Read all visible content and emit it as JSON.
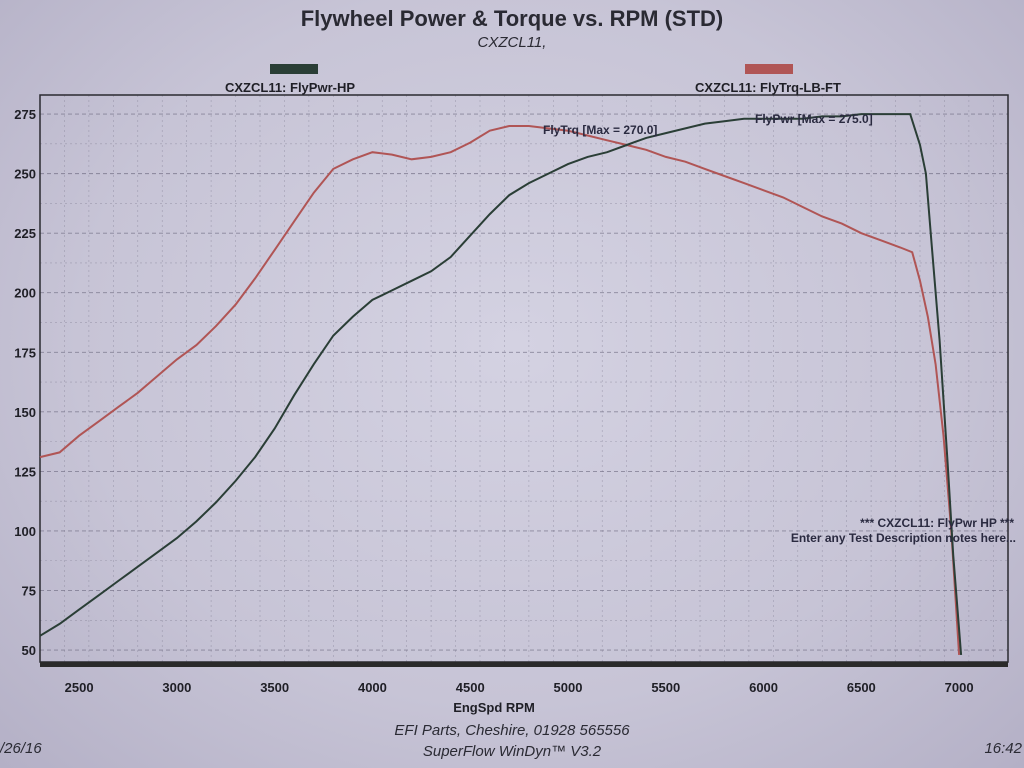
{
  "page": {
    "footer_line1": "EFI Parts, Cheshire, 01928 565556",
    "footer_line2": "SuperFlow WinDyn™ V3.2",
    "date": "/26/16",
    "time": "16:42"
  },
  "notes": {
    "line1": "*** CXZCL11: FlyPwr HP ***",
    "line2": "Enter any Test Description notes here..."
  },
  "chart_data": {
    "type": "line",
    "title": "Flywheel Power & Torque vs. RPM (STD)",
    "subtitle": "CXZCL11,",
    "xlabel": "EngSpd RPM",
    "ylabel": "",
    "xlim": [
      2300,
      7250
    ],
    "ylim": [
      45,
      283
    ],
    "xticks": [
      2500,
      3000,
      3500,
      4000,
      4500,
      5000,
      5500,
      6000,
      6500,
      7000
    ],
    "yticks": [
      50,
      75,
      100,
      125,
      150,
      175,
      200,
      225,
      250,
      275
    ],
    "grid": true,
    "legend_position": "top",
    "series": [
      {
        "name": "CXZCL11: FlyPwr-HP",
        "color": "#2a3e36",
        "max_label": "FlyPwr [Max = 275.0]",
        "max_label_color": "#2a2a40",
        "x": [
          2300,
          2400,
          2500,
          2600,
          2700,
          2800,
          2900,
          3000,
          3100,
          3200,
          3300,
          3400,
          3500,
          3600,
          3700,
          3800,
          3900,
          4000,
          4100,
          4200,
          4300,
          4400,
          4500,
          4600,
          4700,
          4800,
          4900,
          5000,
          5100,
          5200,
          5300,
          5400,
          5500,
          5600,
          5700,
          5800,
          5900,
          6000,
          6100,
          6200,
          6300,
          6400,
          6500,
          6600,
          6700,
          6750,
          6800,
          6830,
          6860,
          6900,
          6940,
          6970,
          7010
        ],
        "values": [
          56,
          61,
          67,
          73,
          79,
          85,
          91,
          97,
          104,
          112,
          121,
          131,
          143,
          157,
          170,
          182,
          190,
          197,
          201,
          205,
          209,
          215,
          224,
          233,
          241,
          246,
          250,
          254,
          257,
          259,
          262,
          265,
          267,
          269,
          271,
          272,
          273,
          273,
          273,
          273,
          274,
          274,
          275,
          275,
          275,
          275,
          262,
          250,
          220,
          180,
          130,
          90,
          48
        ]
      },
      {
        "name": "CXZCL11: FlyTrq-LB-FT",
        "color": "#b05555",
        "max_label": "FlyTrq [Max = 270.0]",
        "max_label_color": "#b05555",
        "x": [
          2300,
          2400,
          2500,
          2600,
          2700,
          2800,
          2900,
          3000,
          3100,
          3200,
          3300,
          3400,
          3500,
          3600,
          3700,
          3800,
          3900,
          4000,
          4100,
          4200,
          4300,
          4400,
          4500,
          4600,
          4700,
          4800,
          4900,
          5000,
          5100,
          5200,
          5300,
          5400,
          5500,
          5600,
          5700,
          5800,
          5900,
          6000,
          6100,
          6200,
          6300,
          6400,
          6500,
          6600,
          6700,
          6760,
          6800,
          6840,
          6880,
          6920,
          6960,
          7000
        ],
        "values": [
          131,
          133,
          140,
          146,
          152,
          158,
          165,
          172,
          178,
          186,
          195,
          206,
          218,
          230,
          242,
          252,
          256,
          259,
          258,
          256,
          257,
          259,
          263,
          268,
          270,
          270,
          269,
          268,
          266,
          264,
          262,
          260,
          257,
          255,
          252,
          249,
          246,
          243,
          240,
          236,
          232,
          229,
          225,
          222,
          219,
          217,
          205,
          190,
          170,
          140,
          100,
          48
        ]
      }
    ]
  }
}
